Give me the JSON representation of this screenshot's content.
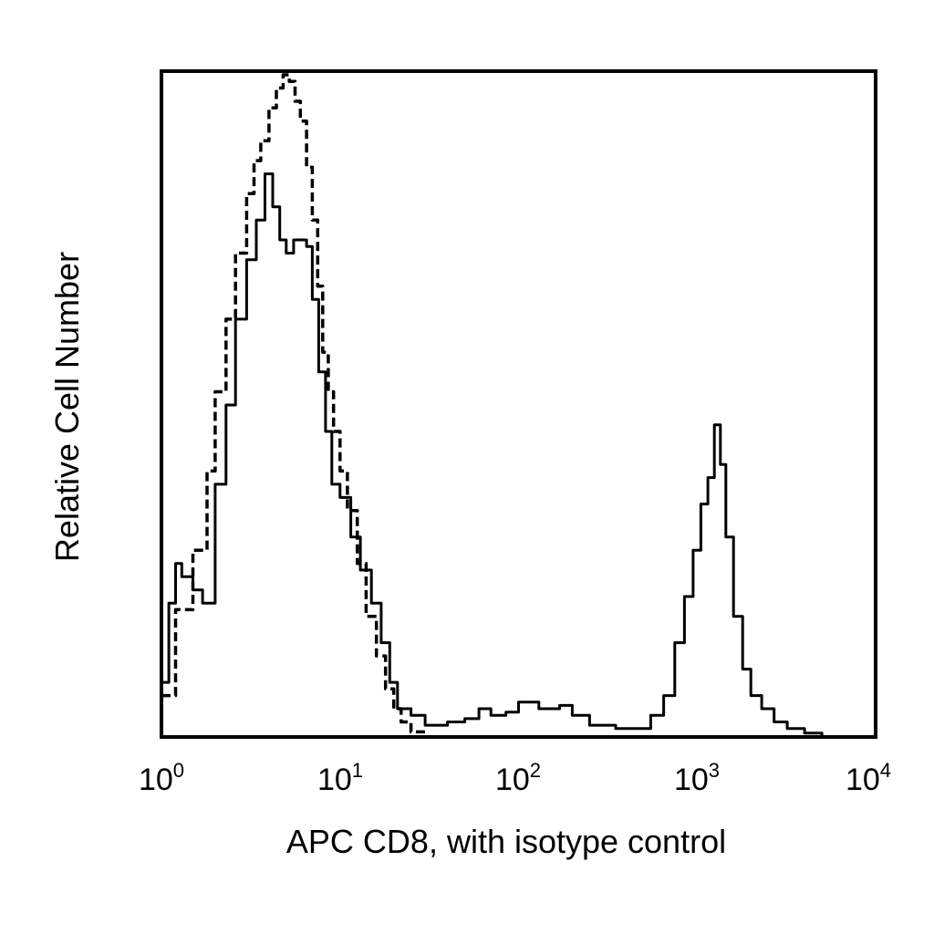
{
  "chart_data": {
    "type": "line",
    "title": "",
    "xlabel": "APC CD8, with isotype control",
    "ylabel": "Relative Cell Number",
    "xscale": "log",
    "xlim": [
      1,
      10000
    ],
    "ylim": [
      0,
      100
    ],
    "grid": false,
    "legend": "none",
    "x_ticks": [
      {
        "base": "10",
        "exp": "0"
      },
      {
        "base": "10",
        "exp": "1"
      },
      {
        "base": "10",
        "exp": "2"
      },
      {
        "base": "10",
        "exp": "3"
      },
      {
        "base": "10",
        "exp": "4"
      }
    ],
    "series": [
      {
        "style": "solid",
        "color": "#000000",
        "x": [
          1.0,
          1.1,
          1.2,
          1.3,
          1.5,
          1.7,
          2.0,
          2.3,
          2.6,
          3.0,
          3.4,
          3.8,
          4.2,
          4.6,
          5.0,
          5.5,
          6.0,
          6.5,
          7.0,
          7.6,
          8.3,
          9.0,
          10.0,
          11.5,
          13.0,
          15.0,
          17.0,
          19.0,
          21.0,
          25.0,
          30.0,
          40.0,
          50.0,
          60.0,
          70.0,
          85.0,
          100.0,
          130.0,
          170.0,
          200.0,
          250.0,
          350.0,
          450.0,
          550.0,
          650.0,
          750.0,
          850.0,
          950.0,
          1050.0,
          1150.0,
          1250.0,
          1350.0,
          1450.0,
          1600.0,
          1800.0,
          2000.0,
          2300.0,
          2700.0,
          3200.0,
          4000.0,
          5000.0
        ],
        "y": [
          8,
          20,
          26,
          24,
          22,
          20,
          38,
          50,
          63,
          72,
          78,
          85,
          80,
          75,
          73,
          75,
          75,
          74,
          66,
          55,
          46,
          38,
          36,
          30,
          25,
          20,
          14,
          8,
          4,
          3,
          1.5,
          2,
          2.5,
          4,
          3,
          3.5,
          5,
          4,
          4.5,
          3,
          1.5,
          1,
          1,
          3,
          6,
          14,
          21,
          28,
          35,
          39,
          47,
          41,
          30,
          18,
          10,
          6,
          4,
          2,
          1,
          0.3,
          0
        ]
      },
      {
        "style": "dashed",
        "color": "#000000",
        "x": [
          1.0,
          1.2,
          1.5,
          1.8,
          2.0,
          2.3,
          2.6,
          3.0,
          3.3,
          3.6,
          4.0,
          4.4,
          4.8,
          5.2,
          5.6,
          6.0,
          6.5,
          7.0,
          7.5,
          8.0,
          8.6,
          9.2,
          10.0,
          11.0,
          12.5,
          14.0,
          16.0,
          18.0,
          20.0,
          22.0,
          25.0,
          30.0
        ],
        "y": [
          6,
          19,
          28,
          40,
          52,
          63,
          73,
          82,
          87,
          90,
          95,
          98,
          100,
          99,
          96,
          93,
          86,
          78,
          68,
          58,
          52,
          46,
          40,
          34,
          26,
          18,
          12,
          7,
          4,
          2,
          0.5,
          0
        ]
      }
    ]
  }
}
